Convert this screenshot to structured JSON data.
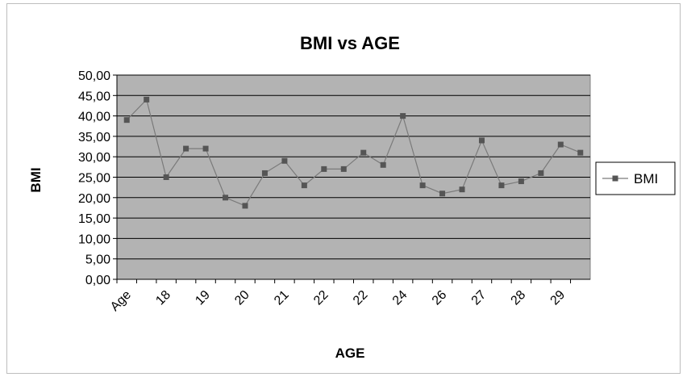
{
  "chart_data": {
    "type": "line",
    "title": "BMI vs AGE",
    "xlabel": "AGE",
    "ylabel": "BMI",
    "ylim": [
      0,
      50
    ],
    "y_ticks": [
      "0,00",
      "5,00",
      "10,00",
      "15,00",
      "20,00",
      "25,00",
      "30,00",
      "35,00",
      "40,00",
      "45,00",
      "50,00"
    ],
    "grid": true,
    "legend_position": "right",
    "categories": [
      "Age",
      "",
      "18",
      "",
      "19",
      "",
      "20",
      "",
      "21",
      "",
      "22",
      "",
      "22",
      "",
      "24",
      "",
      "26",
      "",
      "27",
      "",
      "28",
      "",
      "29",
      ""
    ],
    "series": [
      {
        "name": "BMI",
        "values": [
          39,
          44,
          25,
          32,
          32,
          20,
          18,
          26,
          29,
          23,
          27,
          27,
          31,
          28,
          40,
          23,
          21,
          22,
          34,
          23,
          24,
          26,
          33,
          31
        ]
      }
    ],
    "colors": {
      "plot_bg": "#b3b3b3",
      "line": "#7a7a7a",
      "marker": "#555555",
      "grid": "#000000"
    }
  }
}
